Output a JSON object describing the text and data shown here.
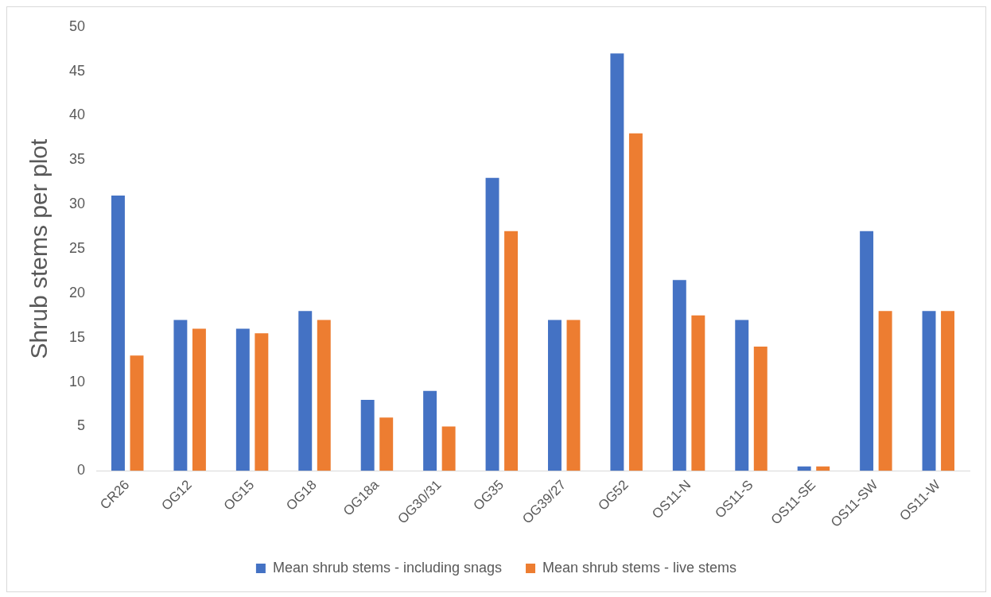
{
  "chart_data": {
    "type": "bar",
    "ylabel": "Shrub stems per plot",
    "categories": [
      "CR26",
      "OG12",
      "OG15",
      "OG18",
      "OG18a",
      "OG30/31",
      "OG35",
      "OG39/27",
      "OG52",
      "OS11-N",
      "OS11-S",
      "OS11-SE",
      "OS11-SW",
      "OS11-W"
    ],
    "series": [
      {
        "name": "Mean shrub stems - including snags",
        "color": "#4472c4",
        "values": [
          31,
          17,
          16,
          18,
          8,
          9,
          33,
          17,
          47,
          21.5,
          17,
          0.5,
          27,
          18
        ]
      },
      {
        "name": "Mean shrub stems - live stems",
        "color": "#ed7d31",
        "values": [
          13,
          16,
          15.5,
          17,
          6,
          5,
          27,
          17,
          38,
          17.5,
          14,
          0.5,
          18,
          18
        ]
      }
    ],
    "ylim": [
      0,
      50
    ],
    "yticks": [
      0,
      5,
      10,
      15,
      20,
      25,
      30,
      35,
      40,
      45,
      50
    ],
    "grid": false,
    "legend": "bottom"
  }
}
